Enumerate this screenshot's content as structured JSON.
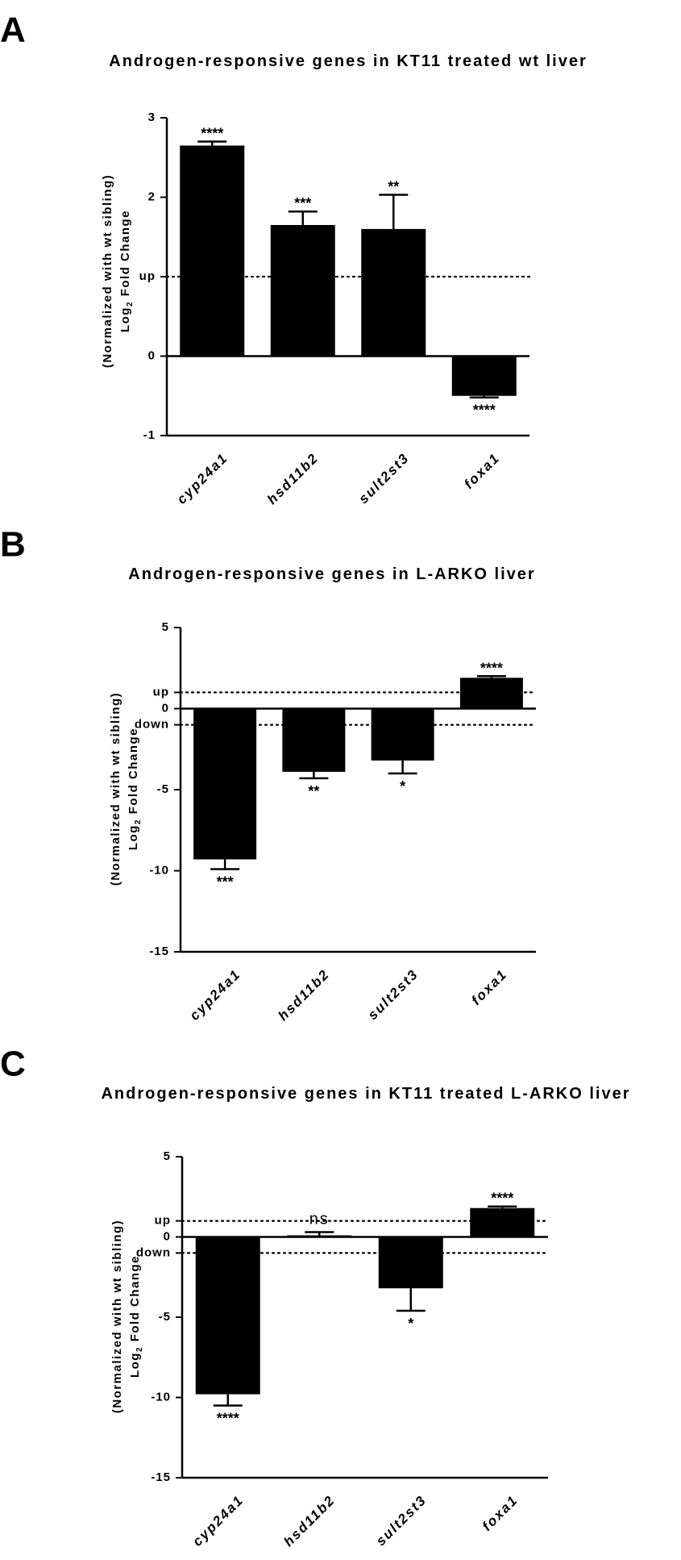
{
  "chart_data": [
    {
      "type": "bar",
      "panel_label": "A",
      "title": "Androgen-responsive genes in KT11 treated wt liver",
      "ylabel_line1": "Log",
      "ylabel_sub": "2",
      "ylabel_line1_rest": " Fold Change",
      "ylabel_line2": "(Normalized with wt sibling)",
      "categories": [
        "cyp24a1",
        "hsd11b2",
        "sult2st3",
        "foxa1"
      ],
      "values": [
        2.65,
        1.65,
        1.6,
        -0.5
      ],
      "errors": [
        0.05,
        0.17,
        0.43,
        0.02
      ],
      "significance": [
        "****",
        "***",
        "**",
        "****"
      ],
      "ylim": [
        -1,
        3
      ],
      "yticks": [
        -1,
        0,
        1,
        2,
        3
      ],
      "ytick_labels": [
        "-1",
        "0",
        "up",
        "2",
        "3"
      ],
      "reference_lines": [
        {
          "label": "up",
          "value": 1
        }
      ]
    },
    {
      "type": "bar",
      "panel_label": "B",
      "title": "Androgen-responsive genes in L-ARKO liver",
      "ylabel_line1": "Log",
      "ylabel_sub": "2",
      "ylabel_line1_rest": " Fold Change",
      "ylabel_line2": "(Normalized with wt sibling)",
      "categories": [
        "cyp24a1",
        "hsd11b2",
        "sult2st3",
        "foxa1"
      ],
      "values": [
        -9.3,
        -3.9,
        -3.2,
        1.9
      ],
      "errors": [
        0.6,
        0.4,
        0.8,
        0.1
      ],
      "significance": [
        "***",
        "**",
        "*",
        "****"
      ],
      "ylim": [
        -15,
        5
      ],
      "yticks": [
        -15,
        -10,
        -5,
        0,
        5
      ],
      "ytick_labels": [
        "-15",
        "-10",
        "-5",
        "0",
        "5"
      ],
      "reference_lines": [
        {
          "label": "up",
          "value": 1
        },
        {
          "label": "down",
          "value": -1
        }
      ]
    },
    {
      "type": "bar",
      "panel_label": "C",
      "title": "Androgen-responsive genes in KT11 treated L-ARKO liver",
      "ylabel_line1": "Log",
      "ylabel_sub": "2",
      "ylabel_line1_rest": " Fold Change",
      "ylabel_line2": "(Normalized with wt sibling)",
      "categories": [
        "cyp24a1",
        "hsd11b2",
        "sult2st3",
        "foxa1"
      ],
      "values": [
        -9.8,
        0.1,
        -3.2,
        1.8
      ],
      "errors": [
        0.7,
        0.2,
        1.4,
        0.1
      ],
      "significance": [
        "****",
        "ns",
        "*",
        "****"
      ],
      "ylim": [
        -15,
        5
      ],
      "yticks": [
        -15,
        -10,
        -5,
        0,
        5
      ],
      "ytick_labels": [
        "-15",
        "-10",
        "-5",
        "0",
        "5"
      ],
      "reference_lines": [
        {
          "label": "up",
          "value": 1
        },
        {
          "label": "down",
          "value": -1
        }
      ]
    }
  ]
}
